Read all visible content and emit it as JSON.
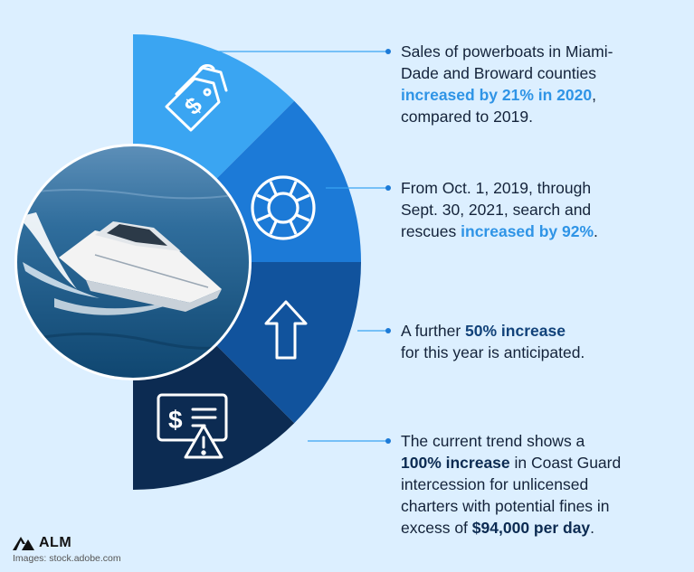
{
  "colors": {
    "background": "#dcefff",
    "segment_1": "#3aa5f2",
    "segment_2": "#1c7ad7",
    "segment_3": "#11539d",
    "segment_4": "#0c2b52",
    "highlight_light": "#2f94e6",
    "highlight_dark": "#11427a",
    "text": "#14233a"
  },
  "segments": [
    {
      "icon": "price-tag-icon"
    },
    {
      "icon": "life-ring-icon"
    },
    {
      "icon": "arrow-up-icon"
    },
    {
      "icon": "invoice-warning-icon"
    }
  ],
  "photo": {
    "subject": "boat-photo"
  },
  "bullets": [
    {
      "line1": "Sales of powerboats in Miami-",
      "line2": "Dade and Broward counties",
      "highlight": "increased by 21% in 2020",
      "after_highlight": ",",
      "line4": "compared to 2019."
    },
    {
      "line1": "From Oct. 1, 2019, through",
      "line2": "Sept. 30, 2021, search and",
      "line3_pre": "rescues ",
      "highlight": "increased by 92%",
      "after_highlight": "."
    },
    {
      "line1_pre": "A further ",
      "highlight": "50% increase",
      "line2": "for this year is anticipated."
    },
    {
      "line1": "The current trend shows a",
      "highlight": "100% increase",
      "line2_post": " in Coast Guard",
      "line3": "intercession for unlicensed",
      "line4": "charters with potential fines in",
      "line5_pre": "excess of ",
      "highlight2": "$94,000 per day",
      "after_highlight2": "."
    }
  ],
  "footer": {
    "logo": "ALM",
    "credit": "Images: stock.adobe.com"
  }
}
